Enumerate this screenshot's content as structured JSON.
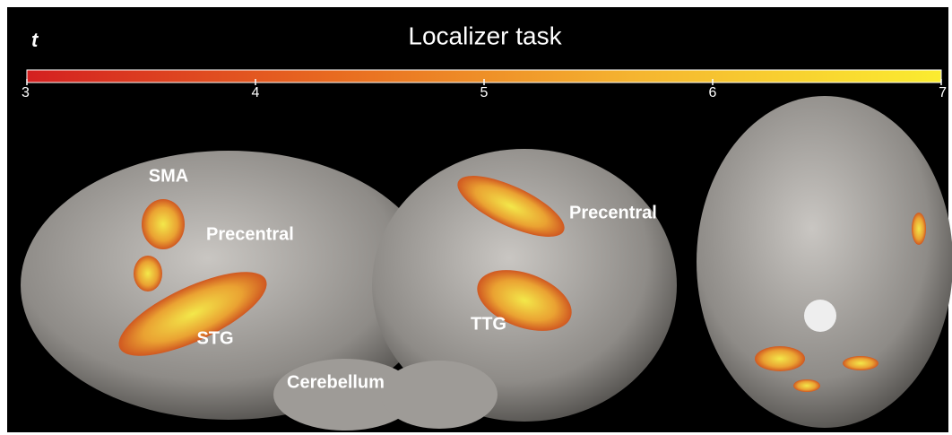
{
  "title": "Localizer task",
  "colorbar": {
    "label": "t",
    "range": [
      3,
      7
    ],
    "ticks": [
      3,
      4,
      5,
      6,
      7
    ],
    "colors": [
      "#d42020",
      "#e86a20",
      "#f5b530",
      "#fbec30"
    ]
  },
  "annotations": [
    "SMA",
    "Precentral",
    "STG",
    "Cerebellum",
    "TTG",
    "Precentral"
  ]
}
